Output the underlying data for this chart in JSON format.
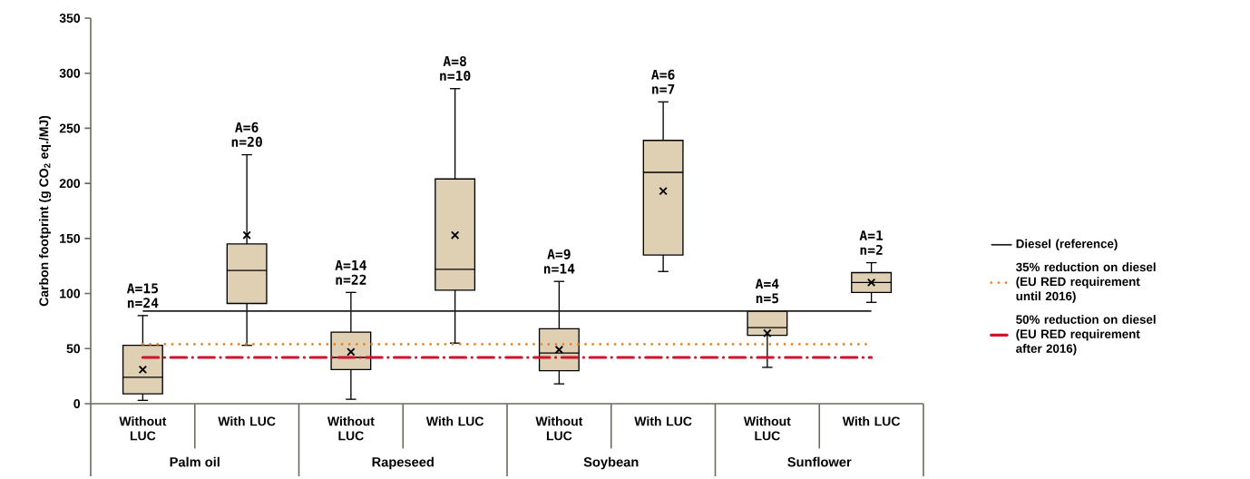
{
  "chart_data": {
    "type": "box",
    "ylabel": "Carbon footprint (g CO$_{2}$ eq./MJ)",
    "categories": [
      "Without LUC",
      "With LUC",
      "Without LUC",
      "With LUC",
      "Without LUC",
      "With LUC",
      "Without LUC",
      "With LUC"
    ],
    "color": "#dfd0b4",
    "boxes": [
      {
        "low": 3,
        "q1": 9,
        "median": 24,
        "q3": 53,
        "high": 80,
        "mean": 31
      },
      {
        "low": 53,
        "q1": 91,
        "median": 121,
        "q3": 145,
        "high": 226,
        "mean": 153
      },
      {
        "low": 4,
        "q1": 31,
        "median": 42,
        "q3": 65,
        "high": 101,
        "mean": 47
      },
      {
        "low": 55,
        "q1": 103,
        "median": 122,
        "q3": 204,
        "high": 286,
        "mean": 153
      },
      {
        "low": 18,
        "q1": 30,
        "median": 46,
        "q3": 68,
        "high": 111,
        "mean": 49
      },
      {
        "low": 120,
        "q1": 135,
        "median": 210,
        "q3": 239,
        "high": 274,
        "mean": 193
      },
      {
        "low": 33,
        "q1": 62,
        "median": 69,
        "q3": 84,
        "high": 84,
        "mean": 64
      },
      {
        "low": 92,
        "q1": 101,
        "median": 110,
        "q3": 119,
        "high": 128,
        "mean": 110
      }
    ],
    "ylim": [
      0,
      350
    ],
    "yticks": [
      0,
      50,
      100,
      150,
      200,
      250,
      300,
      350
    ],
    "ref_lines": [
      {
        "axis": "y",
        "value": 84,
        "label": "Diesel (reference)",
        "color": "#231f20",
        "line_style": "solid"
      },
      {
        "axis": "y",
        "value": 54,
        "label": "35% reduction on diesel (EU RED requirement until 2016)",
        "color": "#f07f1e",
        "line_style": "dotted"
      },
      {
        "axis": "y",
        "value": 42,
        "label": "50% reduction on diesel (EU RED requirement after 2016)",
        "color": "#d2112f",
        "line_style": "dashed"
      }
    ],
    "legend": "right",
    "annotations": [
      "A=15 n=24",
      "A=6 n=20",
      "A=14 n=22",
      "A=8 n=10",
      "A=9 n=14",
      "A=6 n=7",
      "A=4 n=5",
      "A=1 n=2",
      "Palm oil",
      "Rapeseed",
      "Soybean",
      "Sunflower"
    ]
  }
}
